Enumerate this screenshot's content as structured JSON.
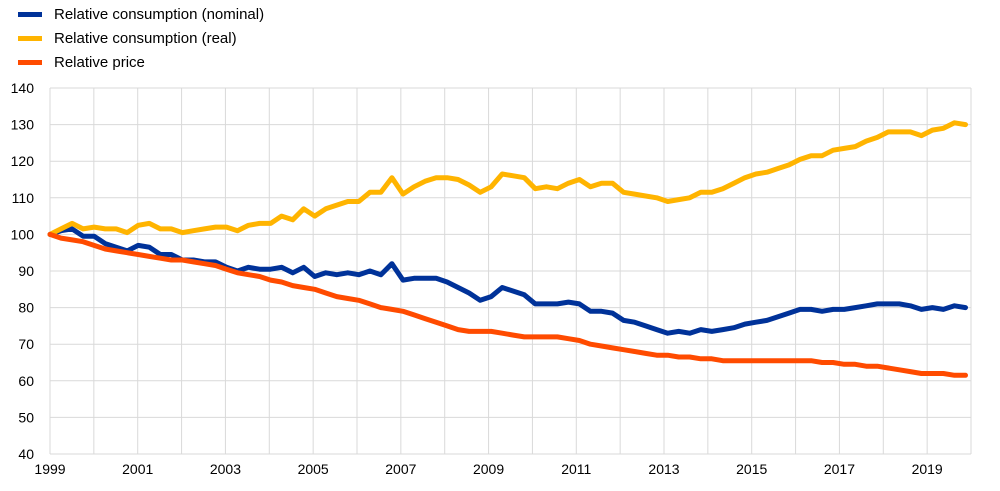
{
  "chart_data": {
    "type": "line",
    "title": "",
    "xlabel": "",
    "ylabel": "",
    "xlim": [
      1999,
      2020
    ],
    "ylim": [
      40,
      140
    ],
    "yticks": [
      40,
      50,
      60,
      70,
      80,
      90,
      100,
      110,
      120,
      130,
      140
    ],
    "xtick_labels": [
      "1999",
      "2001",
      "2003",
      "2005",
      "2007",
      "2009",
      "2011",
      "2013",
      "2015",
      "2017",
      "2019"
    ],
    "grid": true,
    "legend_placement": "top-left",
    "frequency": "quarterly",
    "x_start": 1999,
    "series": [
      {
        "name": "Relative consumption (nominal)",
        "color": "#003299",
        "values": [
          100,
          101,
          101.5,
          99.5,
          99.5,
          97.5,
          96.5,
          95.5,
          97,
          96.5,
          94.5,
          94.5,
          93,
          93,
          92.5,
          92.5,
          91,
          90,
          91,
          90.5,
          90.5,
          91,
          89.5,
          91,
          88.5,
          89.5,
          89,
          89.5,
          89,
          90,
          89,
          92,
          87.5,
          88,
          88,
          88,
          87,
          85.5,
          84,
          82,
          83,
          85.5,
          84.5,
          83.5,
          81,
          81,
          81,
          81.5,
          81,
          79,
          79,
          78.5,
          76.5,
          76,
          75,
          74,
          73,
          73.5,
          73,
          74,
          73.5,
          74,
          74.5,
          75.5,
          76,
          76.5,
          77.5,
          78.5,
          79.5,
          79.5,
          79,
          79.5,
          79.5,
          80,
          80.5,
          81,
          81,
          81,
          80.5,
          79.5,
          80,
          79.5,
          80.5,
          80
        ]
      },
      {
        "name": "Relative consumption (real)",
        "color": "#FFB400",
        "values": [
          100,
          101.5,
          103,
          101.5,
          102,
          101.5,
          101.5,
          100.5,
          102.5,
          103,
          101.5,
          101.5,
          100.5,
          101,
          101.5,
          102,
          102,
          101,
          102.5,
          103,
          103,
          105,
          104,
          107,
          105,
          107,
          108,
          109,
          109,
          111.5,
          111.5,
          115.5,
          111,
          113,
          114.5,
          115.5,
          115.5,
          115,
          113.5,
          111.5,
          113,
          116.5,
          116,
          115.5,
          112.5,
          113,
          112.5,
          114,
          115,
          113,
          114,
          114,
          111.5,
          111,
          110.5,
          110,
          109,
          109.5,
          110,
          111.5,
          111.5,
          112.5,
          114,
          115.5,
          116.5,
          117,
          118,
          119,
          120.5,
          121.5,
          121.5,
          123,
          123.5,
          124,
          125.5,
          126.5,
          128,
          128,
          128,
          127,
          128.5,
          129,
          130.5,
          130
        ]
      },
      {
        "name": "Relative price",
        "color": "#FF4B00",
        "values": [
          100,
          99,
          98.5,
          98,
          97,
          96,
          95.5,
          95,
          94.5,
          94,
          93.5,
          93,
          93,
          92.5,
          92,
          91.5,
          90.5,
          89.5,
          89,
          88.5,
          87.5,
          87,
          86,
          85.5,
          85,
          84,
          83,
          82.5,
          82,
          81,
          80,
          79.5,
          79,
          78,
          77,
          76,
          75,
          74,
          73.5,
          73.5,
          73.5,
          73,
          72.5,
          72,
          72,
          72,
          72,
          71.5,
          71,
          70,
          69.5,
          69,
          68.5,
          68,
          67.5,
          67,
          67,
          66.5,
          66.5,
          66,
          66,
          65.5,
          65.5,
          65.5,
          65.5,
          65.5,
          65.5,
          65.5,
          65.5,
          65.5,
          65,
          65,
          64.5,
          64.5,
          64,
          64,
          63.5,
          63,
          62.5,
          62,
          62,
          62,
          61.5,
          61.5
        ]
      }
    ]
  }
}
